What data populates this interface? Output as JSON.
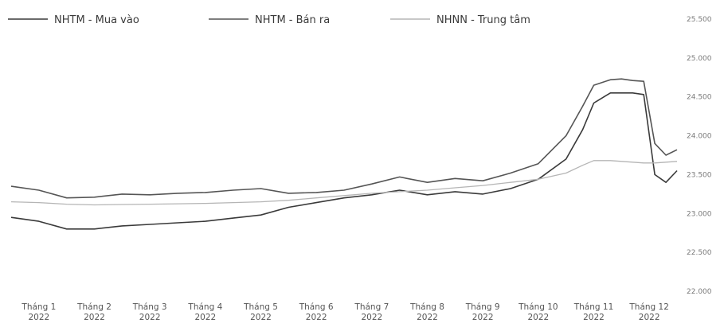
{
  "chart_data": {
    "type": "line",
    "title": "",
    "xlabel": "",
    "ylabel": "",
    "ylim": [
      22000,
      25500
    ],
    "y_ticks": [
      "25.500",
      "25.000",
      "24.500",
      "24.000",
      "23.500",
      "23.000",
      "22.500",
      "22.000"
    ],
    "y_tick_values": [
      25500,
      25000,
      24500,
      24000,
      23500,
      23000,
      22500,
      22000
    ],
    "legend_position": "top-left",
    "grid": false,
    "categories": [
      [
        "Tháng 1",
        "2022"
      ],
      [
        "Tháng 2",
        "2022"
      ],
      [
        "Tháng 3",
        "2022"
      ],
      [
        "Tháng 4",
        "2022"
      ],
      [
        "Tháng 5",
        "2022"
      ],
      [
        "Tháng 6",
        "2022"
      ],
      [
        "Tháng 7",
        "2022"
      ],
      [
        "Tháng 8",
        "2022"
      ],
      [
        "Tháng 9",
        "2022"
      ],
      [
        "Tháng 10",
        "2022"
      ],
      [
        "Tháng 11",
        "2022"
      ],
      [
        "Tháng 12",
        "2022"
      ]
    ],
    "x": [
      0,
      0.5,
      1,
      1.5,
      2,
      2.5,
      3,
      3.5,
      4,
      4.5,
      5,
      5.5,
      6,
      6.5,
      7,
      7.5,
      8,
      8.5,
      9,
      9.5,
      10,
      10.3,
      10.5,
      10.8,
      11,
      11.2,
      11.4,
      11.6,
      11.8,
      12
    ],
    "series": [
      {
        "name": "NHTM - Mua vào",
        "color": "#3a3a3a",
        "values": [
          22950,
          22900,
          22800,
          22800,
          22840,
          22860,
          22880,
          22900,
          22940,
          22980,
          23080,
          23140,
          23200,
          23240,
          23300,
          23240,
          23280,
          23250,
          23320,
          23440,
          23700,
          24080,
          24420,
          24550,
          24550,
          24550,
          24530,
          23500,
          23400,
          23550
        ]
      },
      {
        "name": "NHTM - Bán ra",
        "color": "#555555",
        "values": [
          23350,
          23300,
          23200,
          23210,
          23250,
          23240,
          23260,
          23270,
          23300,
          23320,
          23260,
          23270,
          23300,
          23380,
          23470,
          23400,
          23450,
          23420,
          23520,
          23640,
          24000,
          24380,
          24650,
          24720,
          24730,
          24710,
          24700,
          23900,
          23750,
          23820
        ]
      },
      {
        "name": "NHNN - Trung tâm",
        "color": "#b5b5b5",
        "values": [
          23150,
          23140,
          23120,
          23110,
          23115,
          23120,
          23125,
          23130,
          23140,
          23150,
          23170,
          23200,
          23230,
          23260,
          23280,
          23300,
          23330,
          23360,
          23400,
          23440,
          23520,
          23620,
          23680,
          23680,
          23670,
          23660,
          23650,
          23650,
          23660,
          23670
        ]
      }
    ]
  }
}
